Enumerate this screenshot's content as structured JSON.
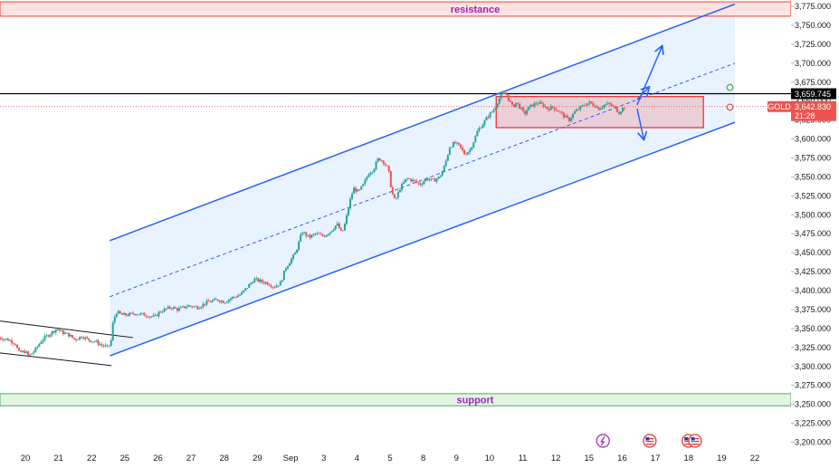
{
  "chart_data": {
    "type": "candlestick",
    "symbol": "GOLD",
    "y_ticks": [
      3200,
      3225,
      3250,
      3275,
      3300,
      3325,
      3350,
      3375,
      3400,
      3425,
      3450,
      3475,
      3500,
      3525,
      3550,
      3575,
      3600,
      3625,
      3650,
      3675,
      3700,
      3725,
      3750,
      3775
    ],
    "ylim": [
      3197,
      3781
    ],
    "x_ticks": [
      {
        "label": "20",
        "x": 0
      },
      {
        "label": "21",
        "x": 1
      },
      {
        "label": "22",
        "x": 2
      },
      {
        "label": "25",
        "x": 3
      },
      {
        "label": "26",
        "x": 4
      },
      {
        "label": "27",
        "x": 5
      },
      {
        "label": "28",
        "x": 6
      },
      {
        "label": "29",
        "x": 7
      },
      {
        "label": "Sep",
        "x": 8
      },
      {
        "label": "3",
        "x": 9
      },
      {
        "label": "4",
        "x": 10
      },
      {
        "label": "5",
        "x": 11
      },
      {
        "label": "8",
        "x": 12
      },
      {
        "label": "9",
        "x": 13
      },
      {
        "label": "10",
        "x": 14
      },
      {
        "label": "11",
        "x": 15
      },
      {
        "label": "12",
        "x": 16
      },
      {
        "label": "15",
        "x": 17
      },
      {
        "label": "16",
        "x": 18
      },
      {
        "label": "17",
        "x": 19
      },
      {
        "label": "18",
        "x": 20
      },
      {
        "label": "19",
        "x": 21
      },
      {
        "label": "22",
        "x": 22
      }
    ],
    "xlim": [
      -0.55,
      22.9
    ],
    "close_path": [
      [
        -0.8,
        3338
      ],
      [
        -0.5,
        3335
      ],
      [
        -0.3,
        3330
      ],
      [
        -0.2,
        3318
      ],
      [
        0.0,
        3320
      ],
      [
        0.1,
        3313
      ],
      [
        0.3,
        3322
      ],
      [
        0.5,
        3335
      ],
      [
        0.65,
        3340
      ],
      [
        0.8,
        3345
      ],
      [
        0.95,
        3350
      ],
      [
        1.1,
        3345
      ],
      [
        1.3,
        3342
      ],
      [
        1.5,
        3335
      ],
      [
        1.7,
        3340
      ],
      [
        1.9,
        3335
      ],
      [
        2.1,
        3333
      ],
      [
        2.3,
        3328
      ],
      [
        2.5,
        3325
      ],
      [
        2.58,
        3332
      ],
      [
        2.65,
        3360
      ],
      [
        2.75,
        3372
      ],
      [
        2.9,
        3368
      ],
      [
        3.1,
        3368
      ],
      [
        3.3,
        3370
      ],
      [
        3.6,
        3368
      ],
      [
        3.9,
        3365
      ],
      [
        4.05,
        3372
      ],
      [
        4.2,
        3375
      ],
      [
        4.4,
        3378
      ],
      [
        4.6,
        3375
      ],
      [
        4.9,
        3380
      ],
      [
        5.2,
        3378
      ],
      [
        5.5,
        3385
      ],
      [
        5.8,
        3388
      ],
      [
        6.0,
        3385
      ],
      [
        6.2,
        3390
      ],
      [
        6.5,
        3395
      ],
      [
        6.7,
        3405
      ],
      [
        6.9,
        3415
      ],
      [
        7.1,
        3412
      ],
      [
        7.3,
        3410
      ],
      [
        7.5,
        3405
      ],
      [
        7.7,
        3410
      ],
      [
        7.85,
        3430
      ],
      [
        8.0,
        3440
      ],
      [
        8.15,
        3450
      ],
      [
        8.35,
        3478
      ],
      [
        8.55,
        3470
      ],
      [
        8.75,
        3475
      ],
      [
        9.0,
        3472
      ],
      [
        9.2,
        3478
      ],
      [
        9.4,
        3488
      ],
      [
        9.55,
        3475
      ],
      [
        9.65,
        3490
      ],
      [
        9.8,
        3520
      ],
      [
        9.9,
        3535
      ],
      [
        10.05,
        3530
      ],
      [
        10.2,
        3540
      ],
      [
        10.35,
        3555
      ],
      [
        10.5,
        3560
      ],
      [
        10.65,
        3575
      ],
      [
        10.8,
        3570
      ],
      [
        10.95,
        3560
      ],
      [
        11.05,
        3530
      ],
      [
        11.15,
        3518
      ],
      [
        11.3,
        3535
      ],
      [
        11.5,
        3548
      ],
      [
        11.7,
        3545
      ],
      [
        11.9,
        3540
      ],
      [
        12.1,
        3548
      ],
      [
        12.3,
        3545
      ],
      [
        12.5,
        3550
      ],
      [
        12.65,
        3565
      ],
      [
        12.8,
        3590
      ],
      [
        12.95,
        3595
      ],
      [
        13.1,
        3590
      ],
      [
        13.25,
        3580
      ],
      [
        13.4,
        3585
      ],
      [
        13.55,
        3600
      ],
      [
        13.65,
        3612
      ],
      [
        13.8,
        3620
      ],
      [
        13.95,
        3630
      ],
      [
        14.05,
        3635
      ],
      [
        14.15,
        3640
      ],
      [
        14.25,
        3650
      ],
      [
        14.35,
        3658
      ],
      [
        14.5,
        3660
      ],
      [
        14.6,
        3650
      ],
      [
        14.7,
        3642
      ],
      [
        14.8,
        3648
      ],
      [
        14.95,
        3640
      ],
      [
        15.05,
        3632
      ],
      [
        15.15,
        3640
      ],
      [
        15.3,
        3645
      ],
      [
        15.45,
        3648
      ],
      [
        15.6,
        3645
      ],
      [
        15.75,
        3640
      ],
      [
        15.9,
        3642
      ],
      [
        16.05,
        3638
      ],
      [
        16.25,
        3630
      ],
      [
        16.4,
        3625
      ],
      [
        16.55,
        3635
      ],
      [
        16.7,
        3640
      ],
      [
        16.85,
        3645
      ],
      [
        17.0,
        3648
      ],
      [
        17.15,
        3645
      ],
      [
        17.3,
        3640
      ],
      [
        17.45,
        3645
      ],
      [
        17.6,
        3646
      ],
      [
        17.75,
        3642
      ],
      [
        17.9,
        3635
      ],
      [
        18.0,
        3640
      ],
      [
        18.12,
        3643
      ]
    ],
    "current_price": {
      "label": "GOLD",
      "value": "3,642.830",
      "countdown": "21:28",
      "value_num": 3642.83
    },
    "horizontal_level": {
      "value": "3,659.745",
      "value_num": 3659.745
    },
    "zones": [
      {
        "label": "resistance",
        "y_low": 3762,
        "y_high": 3781
      },
      {
        "label": "support",
        "y_low": 3248,
        "y_high": 3264
      }
    ],
    "range_box": {
      "x_start": 14.2,
      "x_end": 20.45,
      "y_low": 3615,
      "y_high": 3656
    },
    "channel": {
      "lower": {
        "x1": 2.55,
        "y1": 3314,
        "x2": 21.4,
        "y2": 3622
      },
      "upper": {
        "x1": 2.55,
        "y1": 3466,
        "x2": 21.4,
        "y2": 3778
      },
      "midline": {
        "x1": 2.55,
        "y1": 3392,
        "x2": 21.4,
        "y2": 3700
      }
    },
    "wedge": {
      "upper": {
        "x1": -0.8,
        "y1": 3360,
        "x2": 3.25,
        "y2": 3338
      },
      "lower": {
        "x1": -0.8,
        "y1": 3318,
        "x2": 2.6,
        "y2": 3301
      }
    },
    "arrows": [
      {
        "x1": 18.45,
        "y1": 3645,
        "x2": 19.2,
        "y2": 3722
      },
      {
        "x1": 18.45,
        "y1": 3640,
        "x2": 18.65,
        "y2": 3600
      },
      {
        "x1": 18.45,
        "y1": 3652,
        "x2": 18.8,
        "y2": 3668
      }
    ],
    "markers": [
      {
        "x": 21.25,
        "y": 3668,
        "color": "#4caf50"
      },
      {
        "x": 21.25,
        "y": 3642,
        "color": "#ef5350"
      }
    ],
    "colors": {
      "up": "#26a69a",
      "down": "#ef5350",
      "channel": "#2962ff",
      "channel_fill": "#e3efff",
      "resistance": "#f44336",
      "support": "#4caf50",
      "zone_label_resistance": "#9c27b0",
      "zone_label_support": "#9c27b0"
    }
  }
}
